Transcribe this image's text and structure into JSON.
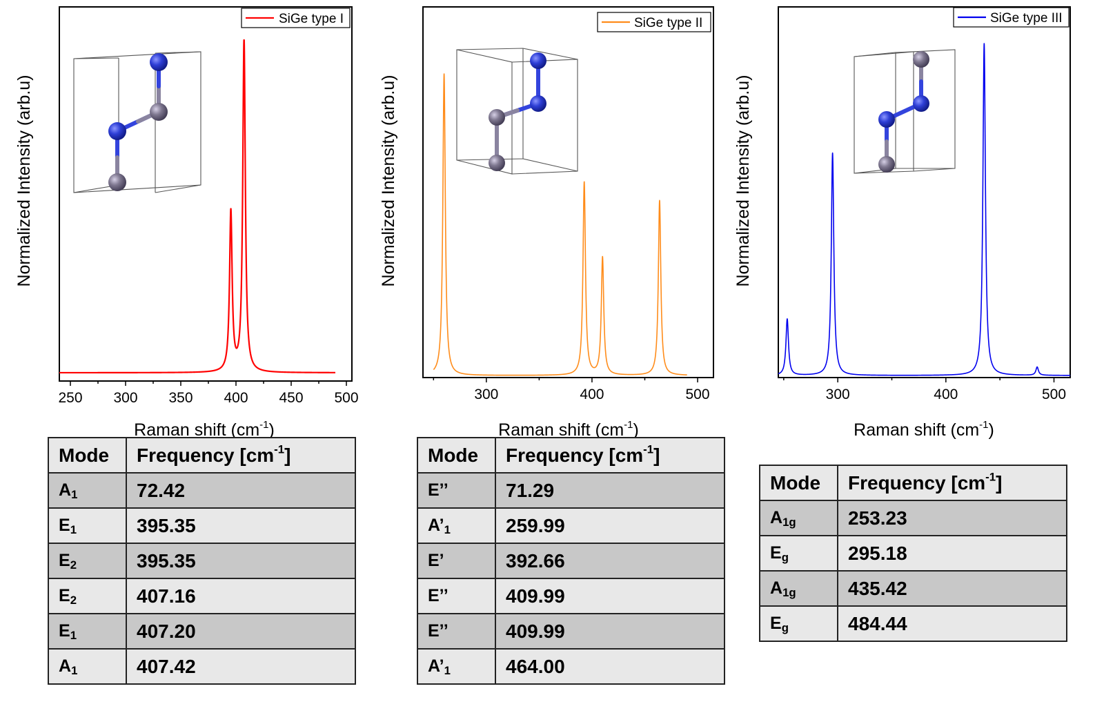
{
  "chart_data": [
    {
      "type": "line",
      "series_name": "SiGe type I",
      "color": "#ff0000",
      "xlabel": "Raman shift (cm",
      "xlabel_sup": "-1",
      "xlabel_tail": ")",
      "ylabel": "Normalized Intensity (arb.u)",
      "xlim": [
        240,
        505
      ],
      "x_ticks": [
        250,
        300,
        350,
        400,
        450,
        500
      ],
      "x_range_drawn": [
        240,
        490
      ],
      "peaks": [
        {
          "x": 395.35,
          "intensity": 0.48
        },
        {
          "x": 407.3,
          "intensity": 1.0
        }
      ],
      "linewidth": 2.2
    },
    {
      "type": "line",
      "series_name": "SiGe type II",
      "color": "#ff8c1a",
      "xlabel": "Raman shift (cm",
      "xlabel_sup": "-1",
      "xlabel_tail": ")",
      "ylabel": "Normalized Intensity (arb.u)",
      "xlim": [
        240,
        515
      ],
      "x_ticks": [
        300,
        400,
        500
      ],
      "x_range_drawn": [
        250,
        490
      ],
      "peaks": [
        {
          "x": 259.99,
          "intensity": 1.0
        },
        {
          "x": 392.66,
          "intensity": 0.64
        },
        {
          "x": 409.99,
          "intensity": 0.39
        },
        {
          "x": 464.0,
          "intensity": 0.58
        }
      ],
      "linewidth": 1.6
    },
    {
      "type": "line",
      "series_name": "SiGe type III",
      "color": "#0000ee",
      "xlabel": "Raman shift (cm",
      "xlabel_sup": "-1",
      "xlabel_tail": ")",
      "ylabel": "Normalized Intensity (arb.u)",
      "xlim": [
        245,
        515
      ],
      "x_ticks": [
        300,
        400,
        500
      ],
      "x_range_drawn": [
        245,
        515
      ],
      "peaks": [
        {
          "x": 253.23,
          "intensity": 0.17
        },
        {
          "x": 295.18,
          "intensity": 0.67
        },
        {
          "x": 435.42,
          "intensity": 1.0
        },
        {
          "x": 484.44,
          "intensity": 0.025
        }
      ],
      "linewidth": 1.6
    }
  ],
  "tables": [
    {
      "header_mode": "Mode",
      "header_freq": "Frequency [cm",
      "header_freq_sup": "-1",
      "header_freq_tail": "]",
      "rows": [
        {
          "mode": "A",
          "sub": "1",
          "freq": "72.42"
        },
        {
          "mode": "E",
          "sub": "1",
          "freq": "395.35"
        },
        {
          "mode": "E",
          "sub": "2",
          "freq": "395.35"
        },
        {
          "mode": "E",
          "sub": "2",
          "freq": "407.16"
        },
        {
          "mode": "E",
          "sub": "1",
          "freq": "407.20"
        },
        {
          "mode": "A",
          "sub": "1",
          "freq": "407.42"
        }
      ]
    },
    {
      "header_mode": "Mode",
      "header_freq": "Frequency [cm",
      "header_freq_sup": "-1",
      "header_freq_tail": "]",
      "rows": [
        {
          "mode": "E’’",
          "sub": "",
          "freq": "71.29"
        },
        {
          "mode": "A’",
          "sub": "1",
          "freq": "259.99"
        },
        {
          "mode": "E’",
          "sub": "",
          "freq": "392.66"
        },
        {
          "mode": "E’’",
          "sub": "",
          "freq": "409.99"
        },
        {
          "mode": "E’’",
          "sub": "",
          "freq": "409.99"
        },
        {
          "mode": "A’",
          "sub": "1",
          "freq": "464.00"
        }
      ]
    },
    {
      "header_mode": "Mode",
      "header_freq": "Frequency [cm",
      "header_freq_sup": "-1",
      "header_freq_tail": "]",
      "rows": [
        {
          "mode": "A",
          "sub": "1g",
          "freq": "253.23"
        },
        {
          "mode": "E",
          "sub": "g",
          "freq": "295.18"
        },
        {
          "mode": "A",
          "sub": "1g",
          "freq": "435.42"
        },
        {
          "mode": "E",
          "sub": "g",
          "freq": "484.44"
        }
      ]
    }
  ],
  "atom_colors": {
    "si": "#2e3fd6",
    "ge": "#7f7890",
    "bond_si": "#3344dd",
    "bond_ge": "#8a84a0"
  }
}
